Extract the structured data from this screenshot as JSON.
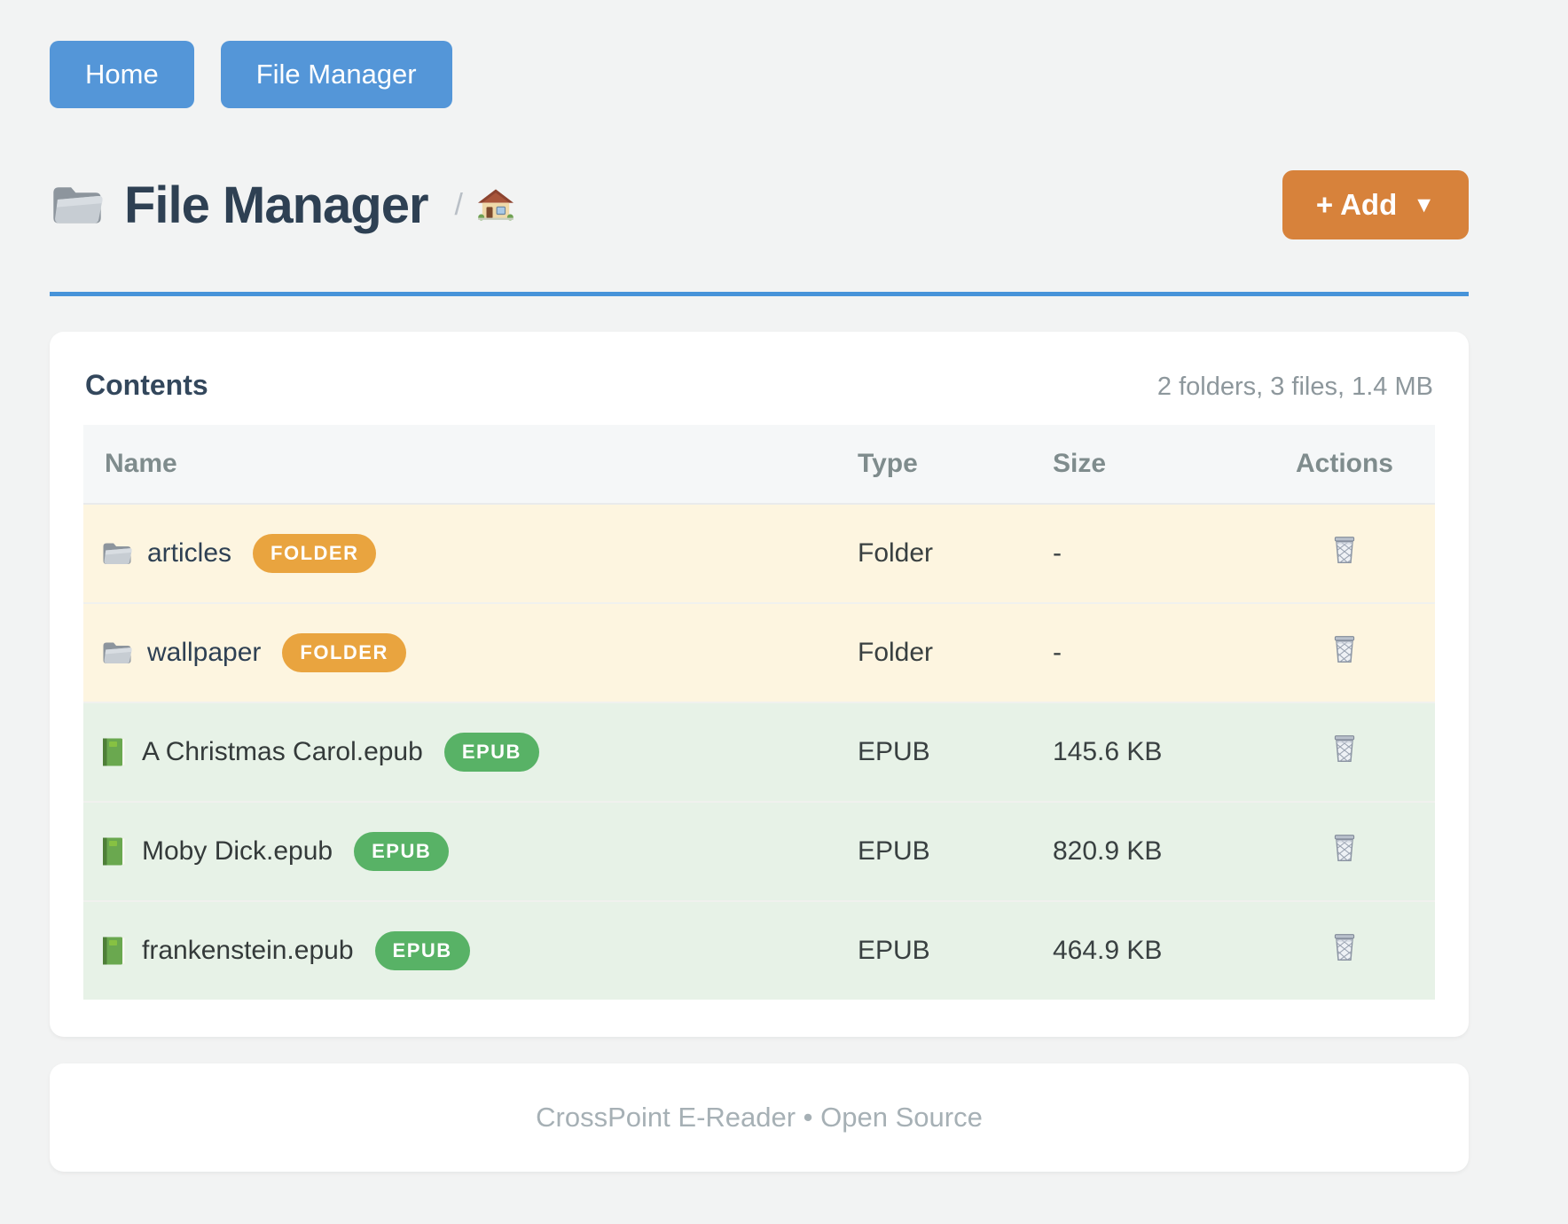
{
  "nav": {
    "home_label": "Home",
    "file_manager_label": "File Manager"
  },
  "header": {
    "title": "File Manager",
    "breadcrumb_separator": "/",
    "add_button_label": "+ Add",
    "add_button_caret": "▼"
  },
  "contents": {
    "heading": "Contents",
    "summary": "2 folders, 3 files, 1.4 MB",
    "table": {
      "columns": [
        "Name",
        "Type",
        "Size",
        "Actions"
      ],
      "rows": [
        {
          "kind": "folder",
          "name": "articles",
          "badge": "FOLDER",
          "type": "Folder",
          "size": "-"
        },
        {
          "kind": "folder",
          "name": "wallpaper",
          "badge": "FOLDER",
          "type": "Folder",
          "size": "-"
        },
        {
          "kind": "epub",
          "name": "A Christmas Carol.epub",
          "badge": "EPUB",
          "type": "EPUB",
          "size": "145.6 KB"
        },
        {
          "kind": "epub",
          "name": "Moby Dick.epub",
          "badge": "EPUB",
          "type": "EPUB",
          "size": "820.9 KB"
        },
        {
          "kind": "epub",
          "name": "frankenstein.epub",
          "badge": "EPUB",
          "type": "EPUB",
          "size": "464.9 KB"
        }
      ]
    }
  },
  "footer": {
    "text": "CrossPoint E-Reader • Open Source"
  },
  "icons": {
    "title": "open-folder-icon",
    "breadcrumb": "home-icon",
    "folder_row": "folder-icon",
    "epub_row": "book-icon",
    "delete": "trash-icon",
    "add_caret": "caret-down-icon"
  },
  "colors": {
    "primary_blue": "#5496d8",
    "accent_orange": "#d7823b",
    "badge_orange": "#e9a43f",
    "badge_green": "#58b266",
    "folder_row_bg": "#fdf5e0",
    "epub_row_bg": "#e7f2e7",
    "rule_blue": "#4793d9",
    "title_navy": "#2e4053",
    "header_gray": "#7f8c8d",
    "page_bg": "#f2f3f3"
  }
}
